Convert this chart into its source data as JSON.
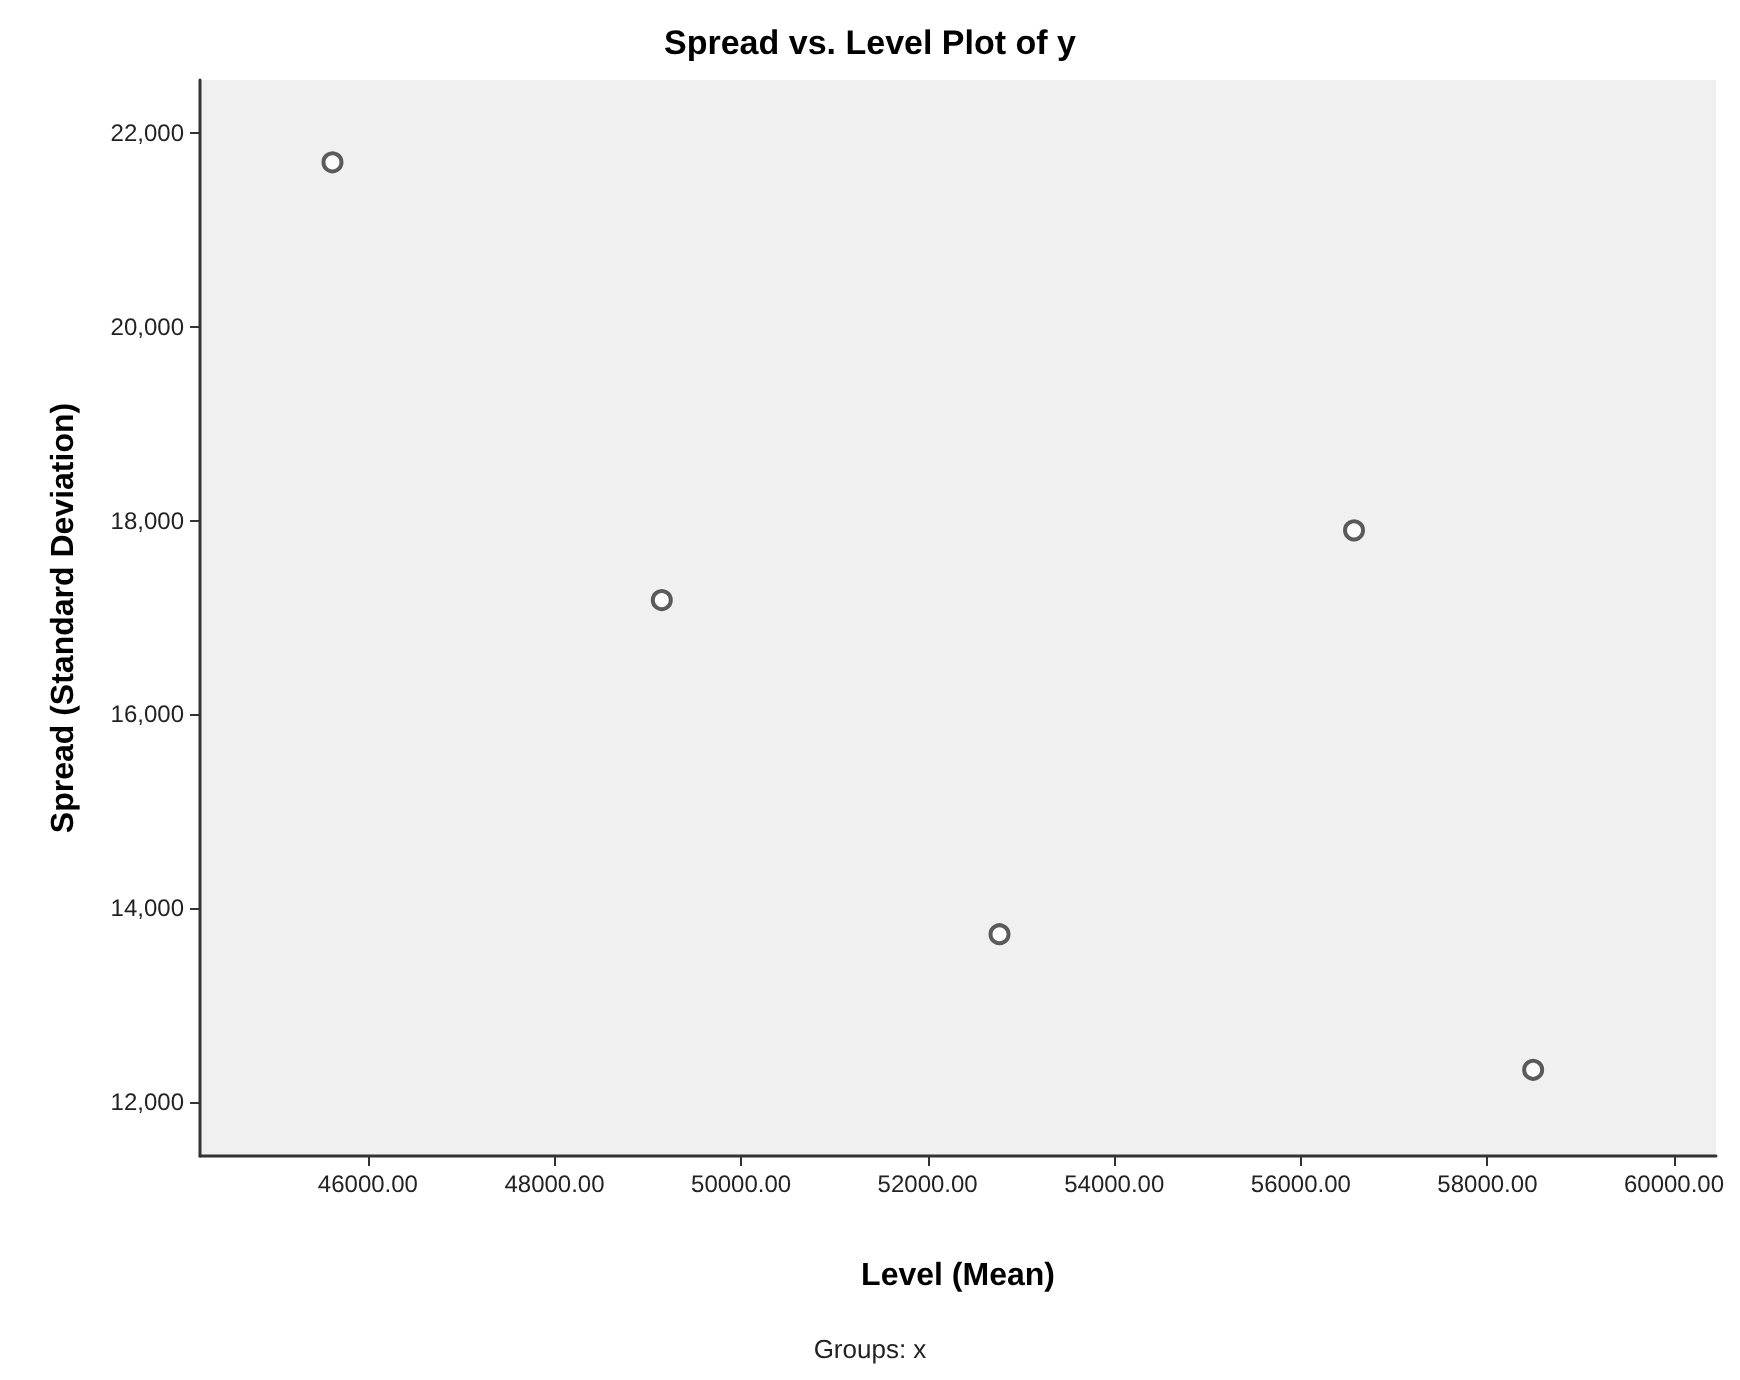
{
  "chart_data": {
    "type": "scatter",
    "title": "Spread vs. Level Plot of y",
    "xlabel": "Level (Mean)",
    "ylabel": "Spread (Standard Deviation)",
    "annotations": [
      "Groups: x"
    ],
    "x": [
      45620,
      49150,
      52770,
      56570,
      58490
    ],
    "values": [
      21700,
      17180,
      13730,
      17900,
      12330
    ],
    "color": "#333333",
    "marker": "circle",
    "grid": false,
    "xlim": [
      44200,
      60450
    ],
    "xticks": [
      {
        "value": 46000,
        "label": "46000.00"
      },
      {
        "value": 48000,
        "label": "48000.00"
      },
      {
        "value": 50000,
        "label": "50000.00"
      },
      {
        "value": 52000,
        "label": "52000.00"
      },
      {
        "value": 54000,
        "label": "54000.00"
      },
      {
        "value": 56000,
        "label": "56000.00"
      },
      {
        "value": 58000,
        "label": "58000.00"
      },
      {
        "value": 60000,
        "label": "60000.00"
      }
    ],
    "ylim": [
      11440,
      22550
    ],
    "yticks": [
      {
        "value": 12000,
        "label": "12,000"
      },
      {
        "value": 14000,
        "label": "14,000"
      },
      {
        "value": 16000,
        "label": "16,000"
      },
      {
        "value": 18000,
        "label": "18,000"
      },
      {
        "value": 20000,
        "label": "20,000"
      },
      {
        "value": 22000,
        "label": "22,000"
      }
    ]
  }
}
